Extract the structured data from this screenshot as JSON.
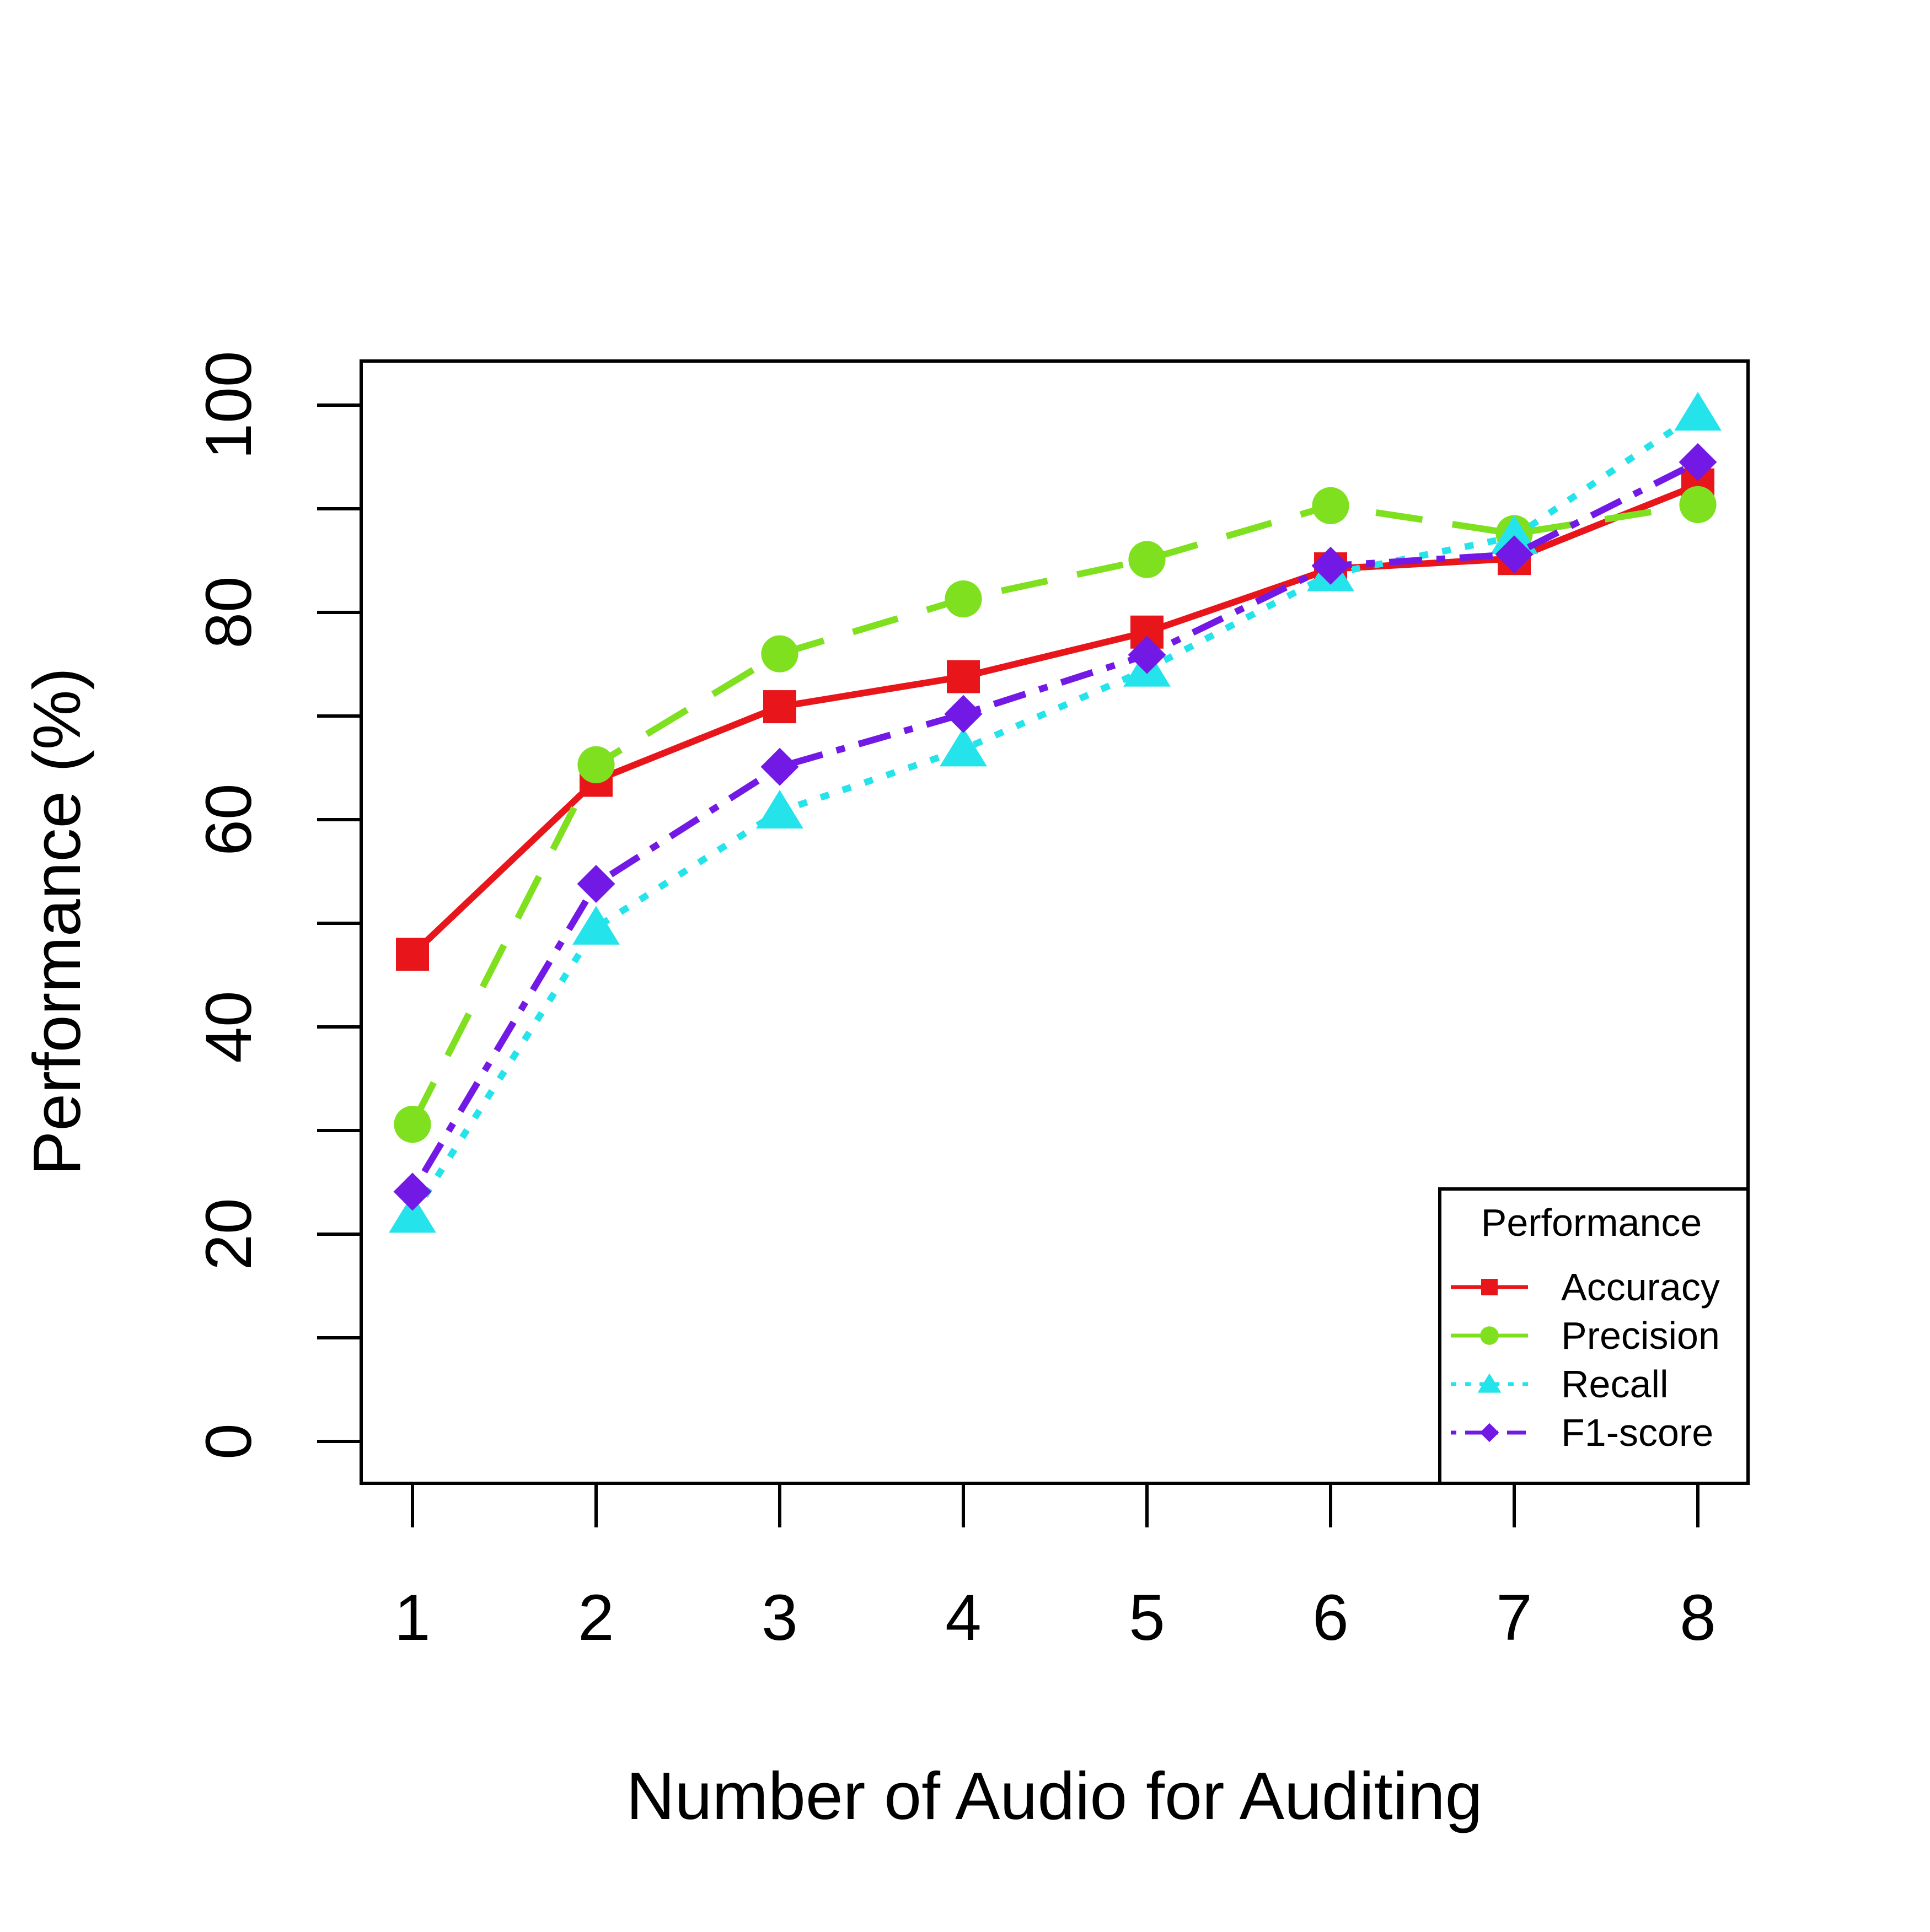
{
  "chart_data": {
    "type": "line",
    "xlabel": "Number of Audio for Auditing",
    "ylabel": "Performance (%)",
    "x": [
      1,
      2,
      3,
      4,
      5,
      6,
      7,
      8
    ],
    "ylim": [
      0,
      100
    ],
    "yticks": [
      0,
      20,
      40,
      60,
      80,
      100
    ],
    "yminor": [
      10,
      30,
      50,
      70,
      90
    ],
    "grid": false,
    "legend": {
      "title": "Performance",
      "position": "bottom-right"
    },
    "series": [
      {
        "name": "Accuracy",
        "color": "#e8161b",
        "marker": "square",
        "dash": "solid",
        "values": [
          47.0,
          63.8,
          70.9,
          73.8,
          78.1,
          84.2,
          85.2,
          92.3
        ]
      },
      {
        "name": "Precision",
        "color": "#7fe01f",
        "marker": "circle",
        "dash": "dashed",
        "values": [
          30.6,
          65.3,
          76.0,
          81.3,
          85.1,
          90.3,
          87.6,
          90.4
        ]
      },
      {
        "name": "Recall",
        "color": "#25e3eb",
        "marker": "triangle",
        "dash": "dotted",
        "values": [
          21.8,
          49.6,
          60.8,
          66.8,
          74.5,
          83.7,
          87.3,
          99.2
        ]
      },
      {
        "name": "F1-score",
        "color": "#7319e6",
        "marker": "diamond",
        "dash": "dotdash",
        "values": [
          24.1,
          53.8,
          65.1,
          70.2,
          75.9,
          84.5,
          85.6,
          94.5
        ]
      }
    ]
  }
}
